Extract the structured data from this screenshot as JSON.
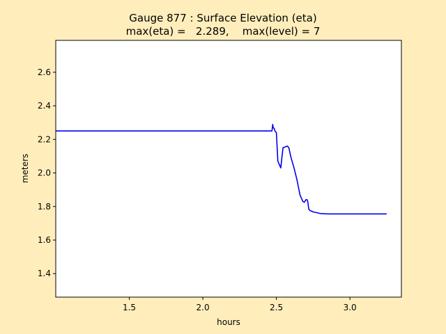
{
  "chart_data": {
    "type": "line",
    "title": "Gauge 877 : Surface Elevation (eta)",
    "subtitle": "max(eta) =   2.289,    max(level) = 7",
    "xlabel": "hours",
    "ylabel": "meters",
    "xlim": [
      1.0,
      3.35
    ],
    "ylim": [
      1.26,
      2.79
    ],
    "xticks": [
      "1.5",
      "2.0",
      "2.5",
      "3.0"
    ],
    "xtick_values": [
      1.5,
      2.0,
      2.5,
      3.0
    ],
    "yticks": [
      "1.4",
      "1.6",
      "1.8",
      "2.0",
      "2.2",
      "2.4",
      "2.6"
    ],
    "ytick_values": [
      1.4,
      1.6,
      1.8,
      2.0,
      2.2,
      2.4,
      2.6
    ],
    "grid": false,
    "series": [
      {
        "color": "#0000ee",
        "x": [
          1.0,
          1.5,
          2.0,
          2.47,
          2.475,
          2.478,
          2.485,
          2.49,
          2.5,
          2.51,
          2.53,
          2.545,
          2.56,
          2.575,
          2.585,
          2.6,
          2.62,
          2.64,
          2.66,
          2.68,
          2.69,
          2.7,
          2.71,
          2.715,
          2.72,
          2.73,
          2.75,
          2.8,
          2.85,
          3.0,
          3.25
        ],
        "y": [
          2.25,
          2.25,
          2.25,
          2.25,
          2.289,
          2.27,
          2.265,
          2.25,
          2.24,
          2.07,
          2.03,
          2.15,
          2.155,
          2.16,
          2.15,
          2.09,
          2.03,
          1.96,
          1.87,
          1.83,
          1.825,
          1.84,
          1.84,
          1.82,
          1.785,
          1.775,
          1.768,
          1.758,
          1.756,
          1.756,
          1.756
        ]
      }
    ]
  }
}
